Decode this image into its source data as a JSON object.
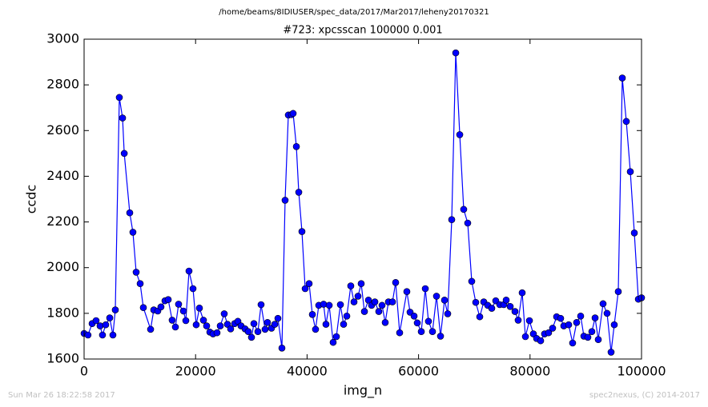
{
  "chart_data": {
    "type": "line",
    "suptitle": "/home/beams/8IDIUSER/spec_data/2017/Mar2017/leheny20170321",
    "title": "#723: xpcsscan 100000 0.001",
    "xlabel": "img_n",
    "ylabel": "ccdc",
    "timestamp": "Sun Mar 26 18:22:58 2017",
    "credit": "spec2nexus, (C) 2014-2017",
    "color": "#0000ff",
    "marker": true,
    "xlim": [
      0,
      100000
    ],
    "xticks": [
      0,
      20000,
      40000,
      60000,
      80000,
      100000
    ],
    "ylim": [
      1600,
      3000
    ],
    "yticks": [
      1600,
      1800,
      2000,
      2200,
      2400,
      2600,
      2800,
      3000
    ],
    "x": [
      0,
      700,
      1440,
      2150,
      2870,
      3300,
      3880,
      4600,
      5170,
      5600,
      6320,
      6900,
      7200,
      8190,
      8760,
      9340,
      10060,
      10630,
      11930,
      12500,
      13220,
      13790,
      14510,
      15090,
      15800,
      16380,
      16950,
      17820,
      18250,
      18820,
      19540,
      20110,
      20690,
      21410,
      21980,
      22560,
      23130,
      23850,
      24430,
      25140,
      25720,
      26290,
      27010,
      27590,
      28160,
      28880,
      29450,
      30030,
      30460,
      31180,
      31750,
      32470,
      32900,
      33620,
      34200,
      34770,
      35490,
      36060,
      36640,
      37210,
      37500,
      38080,
      38510,
      39080,
      39660,
      40370,
      40950,
      41520,
      42100,
      42960,
      43390,
      43970,
      44680,
      45260,
      45980,
      46550,
      47130,
      47840,
      48420,
      49140,
      49710,
      50290,
      51010,
      51580,
      52160,
      52870,
      53450,
      54020,
      54600,
      55320,
      55890,
      56610,
      57900,
      58480,
      59200,
      59770,
      60490,
      61210,
      61780,
      62500,
      63220,
      63940,
      64660,
      65230,
      65950,
      66670,
      67390,
      68100,
      68820,
      69540,
      70260,
      70980,
      71700,
      72410,
      73130,
      73850,
      74570,
      75290,
      75720,
      76440,
      77300,
      77870,
      78590,
      79170,
      79890,
      80600,
      81180,
      81900,
      82610,
      83330,
      84050,
      84770,
      85490,
      86060,
      86930,
      87640,
      88360,
      89080,
      89660,
      90370,
      91090,
      91670,
      92240,
      93100,
      93820,
      94540,
      95110,
      95830,
      96550,
      97270,
      97990,
      98710,
      99430,
      100000
    ],
    "values": [
      1712,
      1705,
      1755,
      1768,
      1745,
      1705,
      1750,
      1780,
      1705,
      1815,
      2745,
      2655,
      2500,
      2240,
      2155,
      1980,
      1930,
      1825,
      1730,
      1815,
      1810,
      1828,
      1855,
      1860,
      1770,
      1740,
      1840,
      1810,
      1768,
      1985,
      1908,
      1750,
      1823,
      1770,
      1745,
      1718,
      1710,
      1715,
      1745,
      1798,
      1752,
      1732,
      1755,
      1765,
      1745,
      1732,
      1720,
      1695,
      1755,
      1720,
      1838,
      1730,
      1760,
      1735,
      1752,
      1778,
      1648,
      2295,
      2668,
      2670,
      2675,
      2530,
      2330,
      2158,
      1908,
      1930,
      1795,
      1730,
      1835,
      1840,
      1752,
      1835,
      1673,
      1698,
      1838,
      1752,
      1788,
      1920,
      1850,
      1875,
      1930,
      1808,
      1858,
      1835,
      1850,
      1808,
      1835,
      1760,
      1850,
      1850,
      1935,
      1715,
      1895,
      1805,
      1788,
      1758,
      1720,
      1908,
      1765,
      1720,
      1875,
      1700,
      1858,
      1798,
      2210,
      2940,
      2582,
      2255,
      2195,
      1940,
      1848,
      1785,
      1850,
      1835,
      1822,
      1855,
      1838,
      1838,
      1858,
      1830,
      1808,
      1770,
      1890,
      1698,
      1768,
      1710,
      1690,
      1680,
      1710,
      1715,
      1735,
      1785,
      1778,
      1745,
      1750,
      1670,
      1760,
      1788,
      1700,
      1695,
      1720,
      1780,
      1685,
      1842,
      1800,
      1630,
      1750,
      1895,
      2830,
      2640,
      2420,
      2152,
      1862,
      1868
    ]
  }
}
